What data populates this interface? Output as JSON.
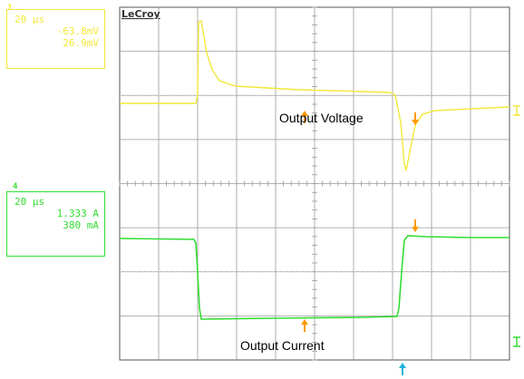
{
  "brand": "LeCroy",
  "colors": {
    "ch1": "#f2e838",
    "ch2": "#33dd33",
    "marker": "#ff9a00",
    "trigger": "#22b4d8",
    "grid": "#9a9a9a",
    "frame": "#555555"
  },
  "ch1": {
    "number": "1",
    "timebase": "20 μs",
    "offset": "-63.8mV",
    "volts_per_div": "26.9mV"
  },
  "ch2": {
    "number": "4",
    "timebase": "20 μs",
    "offset": "1.333 A",
    "amps_per_div": "380 mA"
  },
  "chart_data": {
    "type": "line",
    "grid": true,
    "x_divisions": 10,
    "y_divisions": 8,
    "annotations": [
      "Output Voltage",
      "Output Current"
    ],
    "series": [
      {
        "channel": 1,
        "color": "#f2e838",
        "x": [
          0,
          0.5,
          1,
          1.5,
          2,
          2.5,
          3,
          3.5,
          4,
          5,
          6,
          7,
          8,
          8.6,
          8.9,
          9.5,
          10
        ],
        "y": [
          1.62,
          1.61,
          1.6,
          1.61,
          1.62,
          1.6,
          1.58,
          1.57,
          1.56,
          1.44,
          1.33,
          1.22,
          1.14,
          1.05,
          1.0,
          1.02,
          1.03
        ]
      },
      {
        "channel": 4,
        "color": "#33dd33",
        "x": [
          0,
          1,
          2,
          3,
          4,
          5,
          6
        ],
        "y": [
          -0.93,
          -0.93,
          -0.95,
          -0.95,
          -0.94,
          -0.94,
          -0.92
        ]
      }
    ],
    "markers": [
      {
        "id": "ch1-ref-top"
      },
      {
        "id": "ch1-ref-bottom"
      },
      {
        "id": "ch4-ref-top"
      },
      {
        "id": "ch4-ref-bottom"
      },
      {
        "id": "trigger"
      }
    ]
  }
}
